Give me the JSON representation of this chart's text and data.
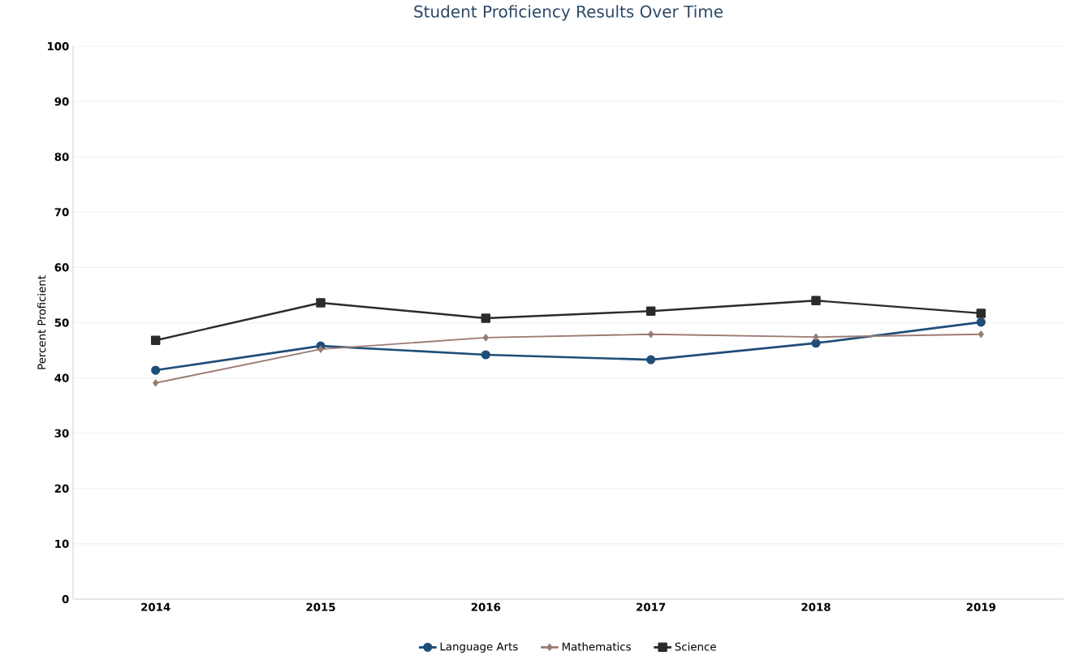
{
  "chart_data": {
    "type": "line",
    "title": "Student Proficiency Results Over Time",
    "ylabel": "Percent Proficient",
    "categories": [
      "2014",
      "2015",
      "2016",
      "2017",
      "2018",
      "2019"
    ],
    "series": [
      {
        "name": "Language Arts",
        "color": "#1f4e79",
        "marker": "circle",
        "values": [
          41.4,
          45.8,
          44.2,
          43.3,
          46.3,
          50.1
        ]
      },
      {
        "name": "Mathematics",
        "color": "#9c7b73",
        "marker": "diamond",
        "values": [
          39.1,
          45.2,
          47.3,
          47.9,
          47.4,
          47.9
        ]
      },
      {
        "name": "Science",
        "color": "#2b2b2b",
        "marker": "square",
        "values": [
          46.8,
          53.6,
          50.8,
          52.1,
          54.0,
          51.7
        ]
      }
    ],
    "ylim": [
      0,
      100
    ],
    "yticks": [
      0,
      10,
      20,
      30,
      40,
      50,
      60,
      70,
      80,
      90,
      100
    ],
    "grid": "y",
    "legend": "bottom",
    "line_style": "solid"
  }
}
